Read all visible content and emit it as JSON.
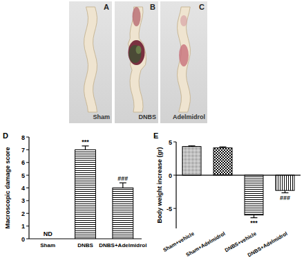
{
  "chart_data": [
    {
      "type": "bar",
      "title": "D",
      "ylabel": "Macroscopic damage score",
      "categories": [
        "Sham",
        "DNBS",
        "DNBS+Adelmidrol"
      ],
      "values": [
        null,
        7,
        4
      ],
      "errors": [
        null,
        0.3,
        0.4
      ],
      "annotations": [
        "ND",
        "***",
        "###"
      ],
      "ylim": [
        0,
        8
      ],
      "yticks": [
        0,
        1,
        2,
        3,
        4,
        5,
        6,
        7,
        8
      ],
      "color": "#000000"
    },
    {
      "type": "bar",
      "title": "E",
      "ylabel": "Body weight increase (gr)",
      "categories": [
        "Sham+vehicle",
        "Sham+Adelmidrol",
        "DNBS+vehicle",
        "DNBS+Adelmidrol"
      ],
      "values": [
        4.3,
        4.1,
        -6,
        -2.3
      ],
      "errors": [
        0.1,
        0.15,
        0.4,
        0.35
      ],
      "annotations": [
        null,
        null,
        "***",
        "###"
      ],
      "ylim": [
        -8,
        5
      ],
      "yticks": [
        -5,
        0,
        5
      ],
      "color": "#000000"
    }
  ],
  "photos": [
    {
      "letter": "A",
      "label": "Sham"
    },
    {
      "letter": "B",
      "label": "DNBS"
    },
    {
      "letter": "C",
      "label": "Adelmidrol"
    }
  ]
}
